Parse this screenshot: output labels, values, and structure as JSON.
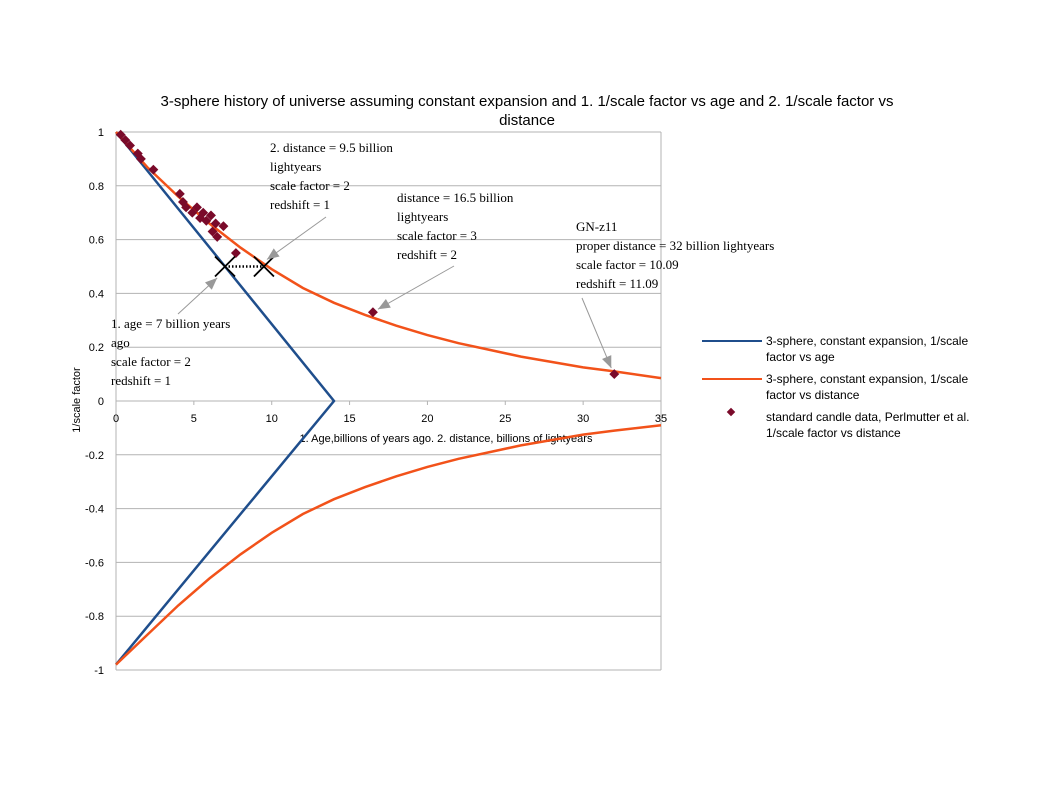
{
  "colors": {
    "age_line": "#1f4e8c",
    "distance_curve": "#f2521a",
    "candle_points": "#7a0a2a",
    "grid": "#b3b3b3",
    "annotation_arrow": "#999999"
  },
  "chart_data": {
    "type": "scatter",
    "title_line1": "3-sphere history of universe assuming constant expansion and 1. 1/scale factor vs age and 2. 1/scale factor vs",
    "title_line2": "distance",
    "xlabel": "1. Age,billions of years ago. 2. distance, billions of lightyears",
    "ylabel": "1/scale factor",
    "xlim": [
      0,
      35
    ],
    "ylim": [
      -1,
      1
    ],
    "x_ticks": [
      "0",
      "5",
      "10",
      "15",
      "20",
      "25",
      "30",
      "35"
    ],
    "y_ticks": [
      "1",
      "0.8",
      "0.6",
      "0.4",
      "0.2",
      "0",
      "-0.2",
      "-0.4",
      "-0.6",
      "-0.8",
      "-1"
    ],
    "grid": "horizontal",
    "legend_position": "right",
    "series": [
      {
        "name": "3-sphere, constant expansion, 1/scale factor vs age",
        "type": "line",
        "points": [
          [
            0,
            1
          ],
          [
            14,
            0
          ],
          [
            0,
            -0.98
          ]
        ]
      },
      {
        "name": "3-sphere, constant expansion, 1/scale factor vs distance",
        "type": "line",
        "points": [
          [
            0,
            1
          ],
          [
            2,
            0.87
          ],
          [
            4,
            0.76
          ],
          [
            6,
            0.66
          ],
          [
            8,
            0.57
          ],
          [
            10,
            0.49
          ],
          [
            12,
            0.42
          ],
          [
            14,
            0.365
          ],
          [
            16,
            0.32
          ],
          [
            18,
            0.28
          ],
          [
            20,
            0.245
          ],
          [
            22,
            0.215
          ],
          [
            24,
            0.19
          ],
          [
            26,
            0.165
          ],
          [
            28,
            0.145
          ],
          [
            30,
            0.125
          ],
          [
            32,
            0.11
          ],
          [
            35,
            0.085
          ]
        ],
        "mirror_points": [
          [
            0,
            -0.98
          ],
          [
            2,
            -0.87
          ],
          [
            4,
            -0.76
          ],
          [
            6,
            -0.66
          ],
          [
            8,
            -0.57
          ],
          [
            10,
            -0.49
          ],
          [
            12,
            -0.42
          ],
          [
            14,
            -0.365
          ],
          [
            16,
            -0.32
          ],
          [
            18,
            -0.28
          ],
          [
            20,
            -0.245
          ],
          [
            22,
            -0.215
          ],
          [
            24,
            -0.19
          ],
          [
            26,
            -0.165
          ],
          [
            28,
            -0.145
          ],
          [
            30,
            -0.125
          ],
          [
            32,
            -0.11
          ],
          [
            35,
            -0.09
          ]
        ]
      },
      {
        "name": "standard candle data, Perlmutter et al. 1/scale factor vs distance",
        "type": "scatter",
        "points": [
          [
            0.3,
            0.99
          ],
          [
            0.6,
            0.97
          ],
          [
            0.9,
            0.95
          ],
          [
            1.4,
            0.92
          ],
          [
            1.6,
            0.9
          ],
          [
            2.4,
            0.86
          ],
          [
            4.1,
            0.77
          ],
          [
            4.3,
            0.74
          ],
          [
            4.5,
            0.72
          ],
          [
            4.9,
            0.7
          ],
          [
            5.2,
            0.72
          ],
          [
            5.4,
            0.68
          ],
          [
            5.6,
            0.7
          ],
          [
            5.8,
            0.67
          ],
          [
            6.1,
            0.69
          ],
          [
            6.2,
            0.63
          ],
          [
            6.4,
            0.66
          ],
          [
            6.5,
            0.61
          ],
          [
            6.9,
            0.65
          ],
          [
            7.7,
            0.55
          ],
          [
            16.5,
            0.33
          ],
          [
            32,
            0.1
          ]
        ]
      }
    ],
    "annotations": [
      {
        "lines": [
          "2. distance = 9.5 billion",
          "lightyears",
          "scale factor = 2",
          "redshift = 1"
        ]
      },
      {
        "lines": [
          "distance = 16.5 billion",
          "lightyears",
          "scale factor = 3",
          "redshift = 2"
        ]
      },
      {
        "lines": [
          "GN-z11",
          "proper distance = 32 billion lightyears",
          "scale factor = 10.09",
          "redshift = 11.09"
        ]
      },
      {
        "lines": [
          "1. age = 7 billion years",
          "ago",
          "scale factor = 2",
          "redshift = 1"
        ]
      }
    ],
    "markers": [
      {
        "type": "cross",
        "x": 7,
        "y": 0.5
      },
      {
        "type": "cross",
        "x": 9.5,
        "y": 0.5
      },
      {
        "type": "dotted-link",
        "from": [
          7,
          0.5
        ],
        "to": [
          9.5,
          0.5
        ]
      }
    ]
  }
}
